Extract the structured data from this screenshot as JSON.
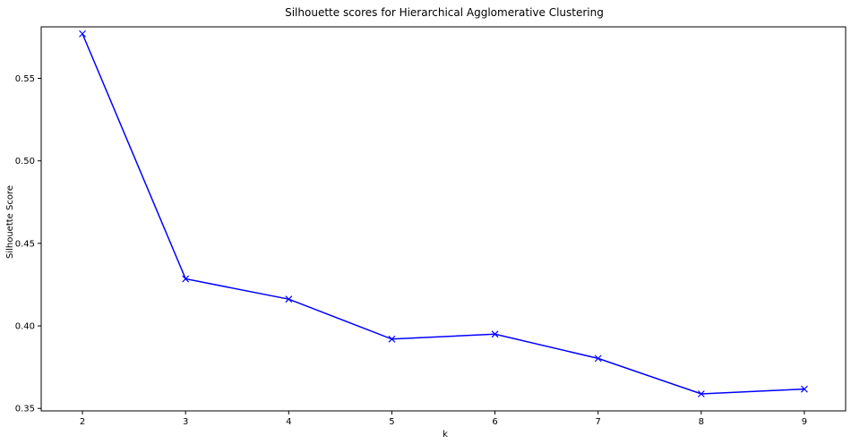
{
  "chart_data": {
    "type": "line",
    "title": "Silhouette scores for Hierarchical Agglomerative Clustering",
    "xlabel": "k",
    "ylabel": "Silhouette Score",
    "x": [
      2,
      3,
      4,
      5,
      6,
      7,
      8,
      9
    ],
    "series": [
      {
        "values": [
          0.577,
          0.4285,
          0.4162,
          0.392,
          0.395,
          0.3803,
          0.3588,
          0.3617
        ],
        "color": "#0000ff",
        "marker": "x"
      }
    ],
    "xlim": [
      1.6,
      9.4
    ],
    "ylim": [
      0.3485,
      0.5812
    ],
    "xticks": [
      "2",
      "3",
      "4",
      "5",
      "6",
      "7",
      "8",
      "9"
    ],
    "yticks": [
      "0.35",
      "0.40",
      "0.45",
      "0.50",
      "0.55"
    ],
    "grid": false,
    "legend": "none"
  }
}
